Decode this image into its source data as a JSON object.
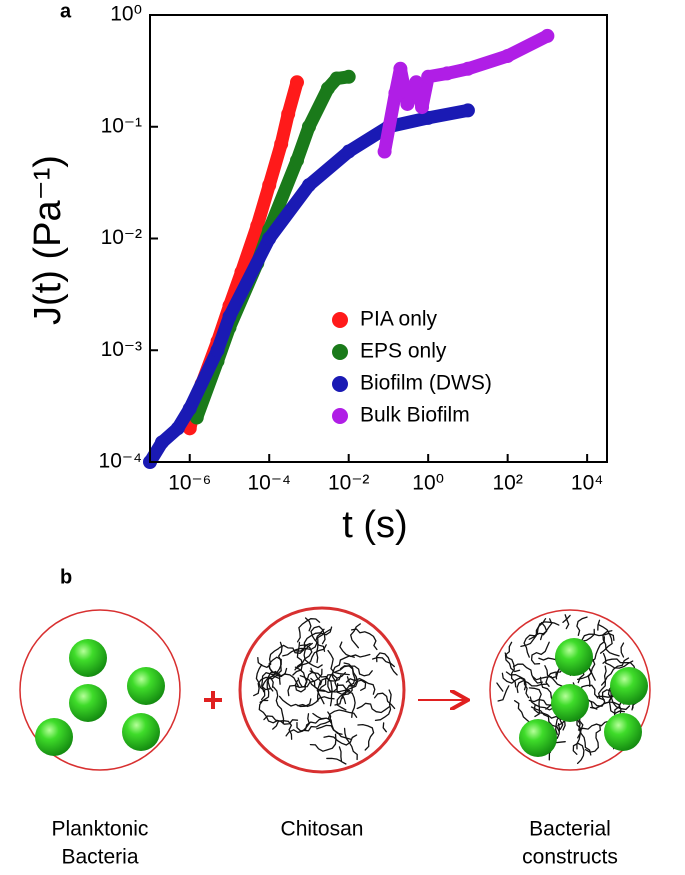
{
  "chart_data": {
    "type": "scatter",
    "panel_label": "a",
    "x_label": "t (s)",
    "y_label": "J(t) (Pa⁻¹)",
    "xscale": "log",
    "yscale": "log",
    "xlim": [
      1e-07,
      31623
    ],
    "ylim": [
      0.0001,
      1
    ],
    "xticks": [
      {
        "value": 1e-06,
        "label": "10⁻⁶"
      },
      {
        "value": 0.0001,
        "label": "10⁻⁴"
      },
      {
        "value": 0.01,
        "label": "10⁻²"
      },
      {
        "value": 1,
        "label": "10⁰"
      },
      {
        "value": 100,
        "label": "10²"
      },
      {
        "value": 10000,
        "label": "10⁴"
      }
    ],
    "yticks": [
      {
        "value": 0.0001,
        "label": "10⁻⁴"
      },
      {
        "value": 0.001,
        "label": "10⁻³"
      },
      {
        "value": 0.01,
        "label": "10⁻²"
      },
      {
        "value": 0.1,
        "label": "10⁻¹"
      },
      {
        "value": 1,
        "label": "10⁰"
      }
    ],
    "series": [
      {
        "name": "PIA only",
        "color": "#ff1a1a",
        "x": [
          1e-06,
          2e-06,
          5e-06,
          1e-05,
          2e-05,
          5e-05,
          0.0001,
          0.0002,
          0.0003,
          0.0005
        ],
        "values": [
          0.0002,
          0.0005,
          0.0012,
          0.0025,
          0.005,
          0.013,
          0.03,
          0.07,
          0.13,
          0.25
        ]
      },
      {
        "name": "EPS only",
        "color": "#1a7a1a",
        "x": [
          1.5e-06,
          5e-06,
          1e-05,
          5e-05,
          0.0001,
          0.0005,
          0.001,
          0.003,
          0.005,
          0.01
        ],
        "values": [
          0.00025,
          0.0008,
          0.0016,
          0.006,
          0.012,
          0.05,
          0.1,
          0.22,
          0.27,
          0.28
        ]
      },
      {
        "name": "Biofilm (DWS)",
        "color": "#1a1ab4",
        "x": [
          1e-07,
          2e-07,
          5e-07,
          1e-06,
          5e-06,
          1e-05,
          0.0001,
          0.001,
          0.01,
          0.1,
          1,
          10
        ],
        "values": [
          0.0001,
          0.00015,
          0.0002,
          0.0003,
          0.001,
          0.002,
          0.01,
          0.03,
          0.06,
          0.1,
          0.12,
          0.14
        ]
      },
      {
        "name": "Bulk Biofilm",
        "color": "#b01ee6",
        "x": [
          0.08,
          0.15,
          0.2,
          0.3,
          0.5,
          0.7,
          1,
          3,
          10,
          100,
          1000
        ],
        "values": [
          0.06,
          0.2,
          0.33,
          0.16,
          0.25,
          0.15,
          0.28,
          0.3,
          0.33,
          0.43,
          0.65
        ]
      }
    ]
  },
  "diagram": {
    "panel_label": "b",
    "items": [
      {
        "label": [
          "Planktonic",
          "Bacteria"
        ]
      },
      {
        "label": [
          "Chitosan"
        ]
      },
      {
        "label": [
          "Bacterial",
          "constructs"
        ]
      }
    ]
  }
}
